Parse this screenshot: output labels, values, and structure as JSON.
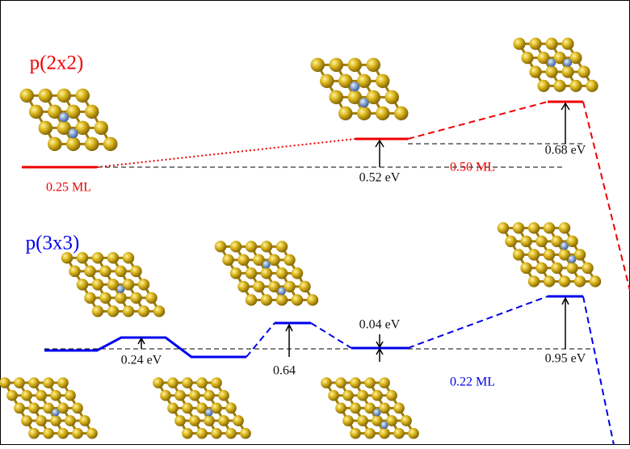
{
  "header": {
    "p2x2": "p(2x2)",
    "p3x3": "p(3x3)"
  },
  "p2x2": {
    "coverage_low": "0.25 ML",
    "barrier_1": "0.52 eV",
    "coverage_high": "0.50 ML",
    "barrier_2": "0.68 eV"
  },
  "p3x3": {
    "barrier_1": "0.24 eV",
    "barrier_2": "0.64",
    "barrier_3": "0.04 eV",
    "coverage": "0.22 ML",
    "barrier_4": "0.95 eV"
  }
}
